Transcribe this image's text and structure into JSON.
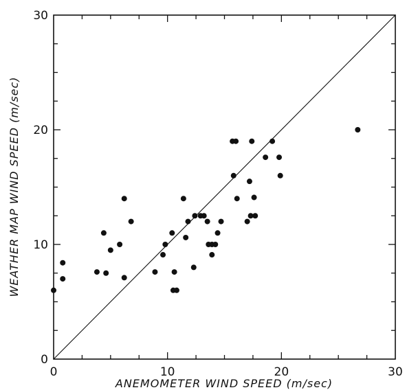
{
  "chart_data": {
    "type": "scatter",
    "xlabel": "ANEMOMETER WIND SPEED (m/sec)",
    "ylabel": "WEATHER MAP WIND SPEED (m/sec)",
    "xlim": [
      0,
      30
    ],
    "ylim": [
      0,
      30
    ],
    "xticks": [
      "0",
      "10",
      "20",
      "30"
    ],
    "yticks": [
      "0",
      "10",
      "20",
      "30"
    ],
    "grid": false,
    "reference_line": {
      "from": [
        0,
        0
      ],
      "to": [
        30,
        30
      ]
    },
    "points": [
      [
        0.0,
        6.0
      ],
      [
        0.8,
        8.4
      ],
      [
        0.8,
        7.0
      ],
      [
        3.8,
        7.6
      ],
      [
        4.4,
        11.0
      ],
      [
        4.6,
        7.5
      ],
      [
        5.0,
        9.5
      ],
      [
        5.8,
        10.0
      ],
      [
        6.2,
        14.0
      ],
      [
        6.2,
        7.1
      ],
      [
        6.8,
        12.0
      ],
      [
        8.9,
        7.6
      ],
      [
        9.6,
        9.1
      ],
      [
        9.8,
        10.0
      ],
      [
        10.4,
        11.0
      ],
      [
        10.5,
        6.0
      ],
      [
        10.6,
        7.6
      ],
      [
        10.8,
        6.0
      ],
      [
        11.4,
        14.0
      ],
      [
        11.6,
        10.6
      ],
      [
        11.8,
        12.0
      ],
      [
        12.3,
        8.0
      ],
      [
        12.4,
        12.5
      ],
      [
        12.9,
        12.5
      ],
      [
        13.2,
        12.5
      ],
      [
        13.5,
        12.0
      ],
      [
        13.6,
        10.0
      ],
      [
        13.9,
        9.1
      ],
      [
        13.9,
        10.0
      ],
      [
        14.2,
        10.0
      ],
      [
        14.4,
        11.0
      ],
      [
        14.7,
        12.0
      ],
      [
        15.7,
        19.0
      ],
      [
        15.8,
        16.0
      ],
      [
        16.0,
        19.0
      ],
      [
        16.1,
        14.0
      ],
      [
        17.0,
        12.0
      ],
      [
        17.2,
        15.5
      ],
      [
        17.3,
        12.5
      ],
      [
        17.4,
        19.0
      ],
      [
        17.6,
        14.1
      ],
      [
        17.7,
        12.5
      ],
      [
        18.6,
        17.6
      ],
      [
        19.2,
        19.0
      ],
      [
        19.8,
        17.6
      ],
      [
        19.9,
        16.0
      ],
      [
        26.7,
        20.0
      ]
    ]
  }
}
